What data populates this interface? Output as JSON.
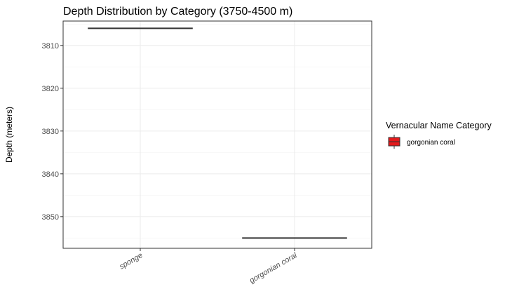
{
  "chart_data": {
    "type": "box",
    "title": "Depth Distribution by Category (3750-4500 m)",
    "xlabel": "",
    "ylabel": "Depth (meters)",
    "categories": [
      "sponge",
      "gorgonian coral"
    ],
    "ylim": [
      3804.3,
      3857.4
    ],
    "y_reversed": true,
    "y_ticks": [
      3810,
      3820,
      3830,
      3840,
      3850
    ],
    "boxes": [
      {
        "category": "sponge",
        "value": 3806
      },
      {
        "category": "gorgonian coral",
        "value": 3855
      }
    ],
    "legend": {
      "title": "Vernacular Name Category",
      "entries": [
        {
          "label": "gorgonian coral",
          "color": "#e41a1c"
        }
      ],
      "placement": "right"
    },
    "grid": true,
    "colors": {
      "panel_border": "#333333",
      "grid_major": "#ebebeb",
      "grid_minor": "#f3f3f3",
      "median_line": "#333333",
      "legend_fill": "#e41a1c"
    }
  }
}
